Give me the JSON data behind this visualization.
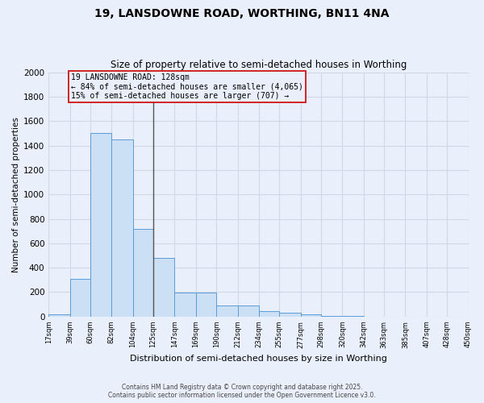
{
  "title1": "19, LANSDOWNE ROAD, WORTHING, BN11 4NA",
  "title2": "Size of property relative to semi-detached houses in Worthing",
  "xlabel": "Distribution of semi-detached houses by size in Worthing",
  "ylabel": "Number of semi-detached properties",
  "bin_edges": [
    17,
    39,
    60,
    82,
    104,
    125,
    147,
    169,
    190,
    212,
    234,
    255,
    277,
    298,
    320,
    342,
    363,
    385,
    407,
    428,
    450
  ],
  "bar_heights": [
    20,
    310,
    1500,
    1450,
    720,
    480,
    195,
    195,
    90,
    90,
    45,
    30,
    20,
    5,
    3,
    2,
    1,
    1,
    1,
    1
  ],
  "bar_color": "#cce0f5",
  "bar_edge_color": "#5b9bd5",
  "vline_x": 125,
  "vline_color": "#555555",
  "annotation_title": "19 LANSDOWNE ROAD: 128sqm",
  "annotation_line1": "← 84% of semi-detached houses are smaller (4,065)",
  "annotation_line2": "15% of semi-detached houses are larger (707) →",
  "annotation_box_color": "#cc0000",
  "ylim": [
    0,
    2000
  ],
  "yticks": [
    0,
    200,
    400,
    600,
    800,
    1000,
    1200,
    1400,
    1600,
    1800,
    2000
  ],
  "background_color": "#eaf0fb",
  "grid_color": "#d0d8e8",
  "footer1": "Contains HM Land Registry data © Crown copyright and database right 2025.",
  "footer2": "Contains public sector information licensed under the Open Government Licence v3.0."
}
